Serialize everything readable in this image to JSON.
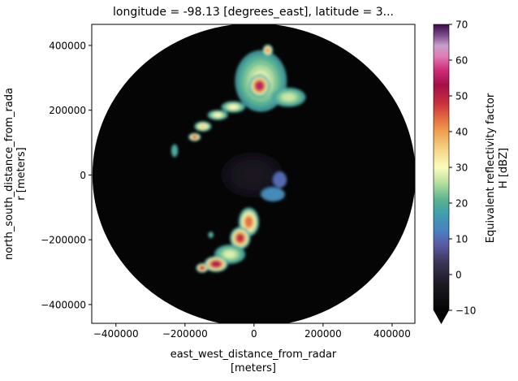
{
  "chart_data": {
    "type": "heatmap",
    "title": "longitude = -98.13 [degrees_east], latitude = 3...",
    "xlabel": [
      "east_west_distance_from_radar",
      "[meters]"
    ],
    "ylabel": [
      "north_south_distance_from_rada",
      "r [meters]"
    ],
    "xlim": [
      -470000,
      466000
    ],
    "ylim": [
      -458000,
      465000
    ],
    "xticks": [
      -400000,
      -200000,
      0,
      200000,
      400000
    ],
    "xtick_labels": [
      "−400000",
      "−200000",
      "0",
      "200000",
      "400000"
    ],
    "yticks": [
      -400000,
      -200000,
      0,
      200000,
      400000
    ],
    "ytick_labels": [
      "−400000",
      "−200000",
      "0",
      "200000",
      "400000"
    ],
    "radar_range_m": 468000,
    "background_value_dbz": -10,
    "colorbar": {
      "label": [
        "Equivalent reflectivity factor",
        "H [dBZ]"
      ],
      "range": [
        -10,
        70
      ],
      "ticks": [
        -10,
        0,
        10,
        20,
        30,
        40,
        50,
        60,
        70
      ],
      "tick_labels": [
        "−10",
        "0",
        "10",
        "20",
        "30",
        "40",
        "50",
        "60",
        "70"
      ],
      "extend": "min",
      "stops": [
        {
          "v": -10,
          "c": "#050505"
        },
        {
          "v": -2,
          "c": "#201c28"
        },
        {
          "v": 3,
          "c": "#3a3352"
        },
        {
          "v": 8,
          "c": "#5a58a0"
        },
        {
          "v": 12,
          "c": "#4a7ec0"
        },
        {
          "v": 17,
          "c": "#3f9fae"
        },
        {
          "v": 21,
          "c": "#5bb38f"
        },
        {
          "v": 26,
          "c": "#bde3a0"
        },
        {
          "v": 30,
          "c": "#fcfcbc"
        },
        {
          "v": 35,
          "c": "#f4d488"
        },
        {
          "v": 40,
          "c": "#f0a050"
        },
        {
          "v": 44,
          "c": "#e2683e"
        },
        {
          "v": 48,
          "c": "#c8303e"
        },
        {
          "v": 53,
          "c": "#a30f47"
        },
        {
          "v": 57,
          "c": "#cc2a78"
        },
        {
          "v": 61,
          "c": "#e07ab4"
        },
        {
          "v": 64,
          "c": "#c8a0cc"
        },
        {
          "v": 67,
          "c": "#7a4a8a"
        },
        {
          "v": 70,
          "c": "#3e0a44"
        }
      ]
    },
    "echoes": [
      {
        "x": -5000,
        "y": 0,
        "rx": 90000,
        "ry": 70000,
        "dbz": -4
      },
      {
        "x": 20000,
        "y": 290000,
        "rx": 75000,
        "ry": 95000,
        "dbz": 28
      },
      {
        "x": 16000,
        "y": 275000,
        "rx": 30000,
        "ry": 35000,
        "dbz": 55
      },
      {
        "x": 40000,
        "y": 385000,
        "rx": 15000,
        "ry": 18000,
        "dbz": 42
      },
      {
        "x": 100000,
        "y": 240000,
        "rx": 50000,
        "ry": 30000,
        "dbz": 27
      },
      {
        "x": -60000,
        "y": 210000,
        "rx": 35000,
        "ry": 18000,
        "dbz": 30
      },
      {
        "x": -105000,
        "y": 185000,
        "rx": 30000,
        "ry": 16000,
        "dbz": 30
      },
      {
        "x": -148000,
        "y": 150000,
        "rx": 25000,
        "ry": 16000,
        "dbz": 35
      },
      {
        "x": -172000,
        "y": 117000,
        "rx": 18000,
        "ry": 13000,
        "dbz": 46
      },
      {
        "x": -230000,
        "y": 75000,
        "rx": 10000,
        "ry": 20000,
        "dbz": 20
      },
      {
        "x": 75000,
        "y": -15000,
        "rx": 20000,
        "ry": 25000,
        "dbz": 10
      },
      {
        "x": 55000,
        "y": -60000,
        "rx": 35000,
        "ry": 22000,
        "dbz": 14
      },
      {
        "x": -15000,
        "y": -145000,
        "rx": 30000,
        "ry": 45000,
        "dbz": 44
      },
      {
        "x": -40000,
        "y": -195000,
        "rx": 30000,
        "ry": 35000,
        "dbz": 50
      },
      {
        "x": -70000,
        "y": -245000,
        "rx": 45000,
        "ry": 30000,
        "dbz": 28
      },
      {
        "x": -110000,
        "y": -275000,
        "rx": 35000,
        "ry": 25000,
        "dbz": 54
      },
      {
        "x": -150000,
        "y": -287000,
        "rx": 18000,
        "ry": 15000,
        "dbz": 50
      },
      {
        "x": -125000,
        "y": -185000,
        "rx": 8000,
        "ry": 10000,
        "dbz": 20
      }
    ]
  }
}
